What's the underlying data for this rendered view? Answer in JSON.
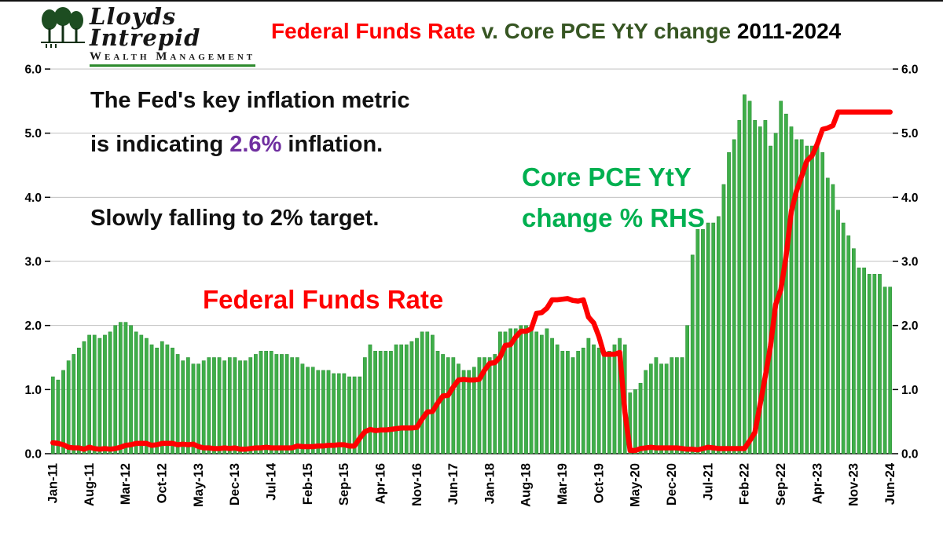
{
  "logo": {
    "name_line1": "Lloyds",
    "name_line2": "Intrepid",
    "subtitle": "Wealth Management"
  },
  "title": {
    "red": "Federal Funds Rate",
    "green": " v. Core PCE YtY change ",
    "black": "2011-2024"
  },
  "annotations": {
    "inflation_line1": "The Fed's key inflation metric",
    "inflation_line2_pre": "is indicating ",
    "inflation_value": "2.6%",
    "inflation_line2_post": " inflation.",
    "target_line": "Slowly falling to 2% target.",
    "ffr_label": "Federal Funds Rate",
    "core_label_line1": "Core PCE YtY",
    "core_label_line2": "change % RHS"
  },
  "colors": {
    "bar_green": "#3fae49",
    "bar_stroke": "#2a8c33",
    "line_red": "#ff0000",
    "purple": "#7030a0",
    "annotation_green": "#00b050",
    "title_green": "#375623",
    "grid": "#c0c0c0"
  },
  "chart_data": {
    "type": "bar+line dual-axis",
    "title": "Federal Funds Rate v. Core PCE YtY change 2011-2024",
    "ylim": [
      0,
      6
    ],
    "y_ticks": [
      "0.0",
      "1.0",
      "2.0",
      "3.0",
      "4.0",
      "5.0",
      "6.0"
    ],
    "grid": "horizontal",
    "x_tick_interval": 7,
    "x_tick_labels": [
      "Jan-11",
      "Aug-11",
      "Mar-12",
      "Oct-12",
      "May-13",
      "Dec-13",
      "Jul-14",
      "Feb-15",
      "Sep-15",
      "Apr-16",
      "Nov-16",
      "Jun-17",
      "Jan-18",
      "Aug-18",
      "Mar-19",
      "Oct-19",
      "May-20",
      "Dec-20",
      "Jul-21",
      "Feb-22",
      "Sep-22",
      "Apr-23",
      "Nov-23",
      "Jun-24"
    ],
    "n_points": 162,
    "series": [
      {
        "name": "Core PCE YtY change % (RHS)",
        "type": "bar",
        "color": "#3fae49",
        "values": [
          1.2,
          1.15,
          1.3,
          1.45,
          1.55,
          1.65,
          1.75,
          1.85,
          1.85,
          1.8,
          1.85,
          1.9,
          2.0,
          2.05,
          2.05,
          2.0,
          1.9,
          1.85,
          1.8,
          1.7,
          1.65,
          1.75,
          1.7,
          1.65,
          1.55,
          1.45,
          1.5,
          1.4,
          1.4,
          1.45,
          1.5,
          1.5,
          1.5,
          1.45,
          1.5,
          1.5,
          1.45,
          1.45,
          1.5,
          1.55,
          1.6,
          1.6,
          1.6,
          1.55,
          1.55,
          1.55,
          1.5,
          1.5,
          1.4,
          1.35,
          1.35,
          1.3,
          1.3,
          1.3,
          1.25,
          1.25,
          1.25,
          1.2,
          1.2,
          1.2,
          1.5,
          1.7,
          1.6,
          1.6,
          1.6,
          1.6,
          1.7,
          1.7,
          1.7,
          1.75,
          1.8,
          1.9,
          1.9,
          1.85,
          1.6,
          1.55,
          1.5,
          1.5,
          1.4,
          1.3,
          1.3,
          1.35,
          1.5,
          1.5,
          1.5,
          1.55,
          1.9,
          1.9,
          1.95,
          1.95,
          2.0,
          2.0,
          2.0,
          1.9,
          1.85,
          1.95,
          1.8,
          1.7,
          1.6,
          1.6,
          1.5,
          1.6,
          1.65,
          1.8,
          1.7,
          1.65,
          1.6,
          1.6,
          1.7,
          1.8,
          1.7,
          0.95,
          1.0,
          1.1,
          1.3,
          1.4,
          1.5,
          1.4,
          1.4,
          1.5,
          1.5,
          1.5,
          2.0,
          3.1,
          3.5,
          3.5,
          3.6,
          3.6,
          3.7,
          4.2,
          4.7,
          4.9,
          5.2,
          5.6,
          5.5,
          5.2,
          5.1,
          5.2,
          4.8,
          5.0,
          5.5,
          5.3,
          5.1,
          4.9,
          4.9,
          4.8,
          4.8,
          4.8,
          4.7,
          4.3,
          4.2,
          3.8,
          3.6,
          3.4,
          3.2,
          2.9,
          2.9,
          2.8,
          2.8,
          2.8,
          2.6,
          2.6
        ]
      },
      {
        "name": "Federal Funds Rate",
        "type": "line",
        "color": "#ff0000",
        "values": [
          0.17,
          0.16,
          0.14,
          0.1,
          0.09,
          0.09,
          0.07,
          0.1,
          0.08,
          0.07,
          0.08,
          0.07,
          0.08,
          0.1,
          0.13,
          0.14,
          0.16,
          0.16,
          0.16,
          0.13,
          0.14,
          0.16,
          0.16,
          0.16,
          0.14,
          0.15,
          0.14,
          0.15,
          0.11,
          0.09,
          0.09,
          0.08,
          0.08,
          0.09,
          0.08,
          0.09,
          0.07,
          0.07,
          0.08,
          0.09,
          0.09,
          0.1,
          0.09,
          0.09,
          0.09,
          0.09,
          0.09,
          0.12,
          0.11,
          0.11,
          0.11,
          0.12,
          0.12,
          0.13,
          0.13,
          0.14,
          0.14,
          0.12,
          0.12,
          0.24,
          0.34,
          0.38,
          0.36,
          0.37,
          0.37,
          0.38,
          0.39,
          0.4,
          0.4,
          0.4,
          0.41,
          0.54,
          0.65,
          0.66,
          0.79,
          0.9,
          0.91,
          1.04,
          1.15,
          1.16,
          1.15,
          1.15,
          1.16,
          1.3,
          1.41,
          1.42,
          1.51,
          1.69,
          1.7,
          1.82,
          1.91,
          1.91,
          1.95,
          2.19,
          2.2,
          2.27,
          2.4,
          2.4,
          2.41,
          2.42,
          2.39,
          2.38,
          2.4,
          2.13,
          2.04,
          1.83,
          1.55,
          1.55,
          1.55,
          1.58,
          0.65,
          0.05,
          0.05,
          0.08,
          0.09,
          0.1,
          0.09,
          0.09,
          0.09,
          0.09,
          0.09,
          0.08,
          0.07,
          0.07,
          0.06,
          0.08,
          0.1,
          0.09,
          0.08,
          0.08,
          0.08,
          0.08,
          0.08,
          0.08,
          0.2,
          0.33,
          0.77,
          1.21,
          1.68,
          2.33,
          2.56,
          3.08,
          3.78,
          4.1,
          4.33,
          4.57,
          4.65,
          4.83,
          5.06,
          5.08,
          5.12,
          5.33,
          5.33,
          5.33,
          5.33,
          5.33,
          5.33,
          5.33,
          5.33,
          5.33,
          5.33,
          5.33
        ]
      }
    ]
  }
}
